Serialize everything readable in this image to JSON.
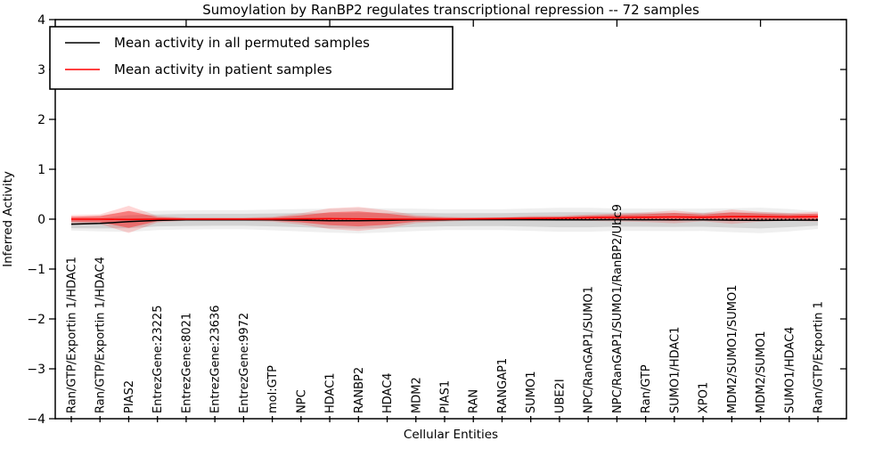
{
  "chart_data": {
    "type": "line",
    "title": "Sumoylation by RanBP2 regulates transcriptional repression -- 72 samples",
    "xlabel": "Cellular Entities",
    "ylabel": "Inferred Activity",
    "ylim": [
      -4,
      4
    ],
    "yticks": [
      -4,
      -3,
      -2,
      -1,
      0,
      1,
      2,
      3,
      4
    ],
    "top_xtick_indices": [
      4,
      9,
      14,
      19,
      24
    ],
    "grid": false,
    "legend_position": "upper left",
    "zero_line": {
      "y": 0,
      "style": "dotted",
      "color": "#000000"
    },
    "categories": [
      "Ran/GTP/Exportin 1/HDAC1",
      "Ran/GTP/Exportin 1/HDAC4",
      "PIAS2",
      "EntrezGene:23225",
      "EntrezGene:8021",
      "EntrezGene:23636",
      "EntrezGene:9972",
      "mol:GTP",
      "NPC",
      "HDAC1",
      "RANBP2",
      "HDAC4",
      "MDM2",
      "PIAS1",
      "RAN",
      "RANGAP1",
      "SUMO1",
      "UBE2I",
      "NPC/RanGAP1/SUMO1",
      "NPC/RanGAP1/SUMO1/RanBP2/Ubc9",
      "Ran/GTP",
      "SUMO1/HDAC1",
      "XPO1",
      "MDM2/SUMO1/SUMO1",
      "MDM2/SUMO1",
      "SUMO1/HDAC4",
      "Ran/GTP/Exportin 1"
    ],
    "series": [
      {
        "name": "Mean activity in all permuted samples",
        "color": "#000000",
        "band_color": "#808080",
        "values": [
          -0.1,
          -0.085,
          -0.05,
          -0.025,
          -0.015,
          -0.012,
          -0.012,
          -0.015,
          -0.02,
          -0.03,
          -0.03,
          -0.025,
          -0.015,
          -0.012,
          -0.01,
          -0.01,
          -0.01,
          -0.012,
          -0.012,
          -0.01,
          -0.012,
          -0.015,
          -0.012,
          -0.02,
          -0.025,
          -0.02,
          -0.02
        ],
        "band": [
          0.08,
          0.1,
          0.13,
          0.12,
          0.12,
          0.12,
          0.12,
          0.13,
          0.14,
          0.15,
          0.16,
          0.15,
          0.14,
          0.13,
          0.13,
          0.13,
          0.14,
          0.15,
          0.15,
          0.14,
          0.14,
          0.14,
          0.14,
          0.15,
          0.16,
          0.14,
          0.11
        ]
      },
      {
        "name": "Mean activity in patient samples",
        "color": "#ff0000",
        "band_color": "#ff0000",
        "values": [
          0.0,
          0.0,
          -0.005,
          0.0,
          0.0,
          0.0,
          0.0,
          0.0,
          0.005,
          0.01,
          0.005,
          0.0,
          0.0,
          0.0,
          0.005,
          0.01,
          0.015,
          0.02,
          0.03,
          0.035,
          0.04,
          0.045,
          0.04,
          0.05,
          0.05,
          0.045,
          0.05
        ],
        "band": [
          0.05,
          0.06,
          0.17,
          0.04,
          0.02,
          0.02,
          0.02,
          0.03,
          0.07,
          0.13,
          0.15,
          0.11,
          0.05,
          0.03,
          0.02,
          0.02,
          0.03,
          0.03,
          0.04,
          0.05,
          0.06,
          0.08,
          0.05,
          0.09,
          0.06,
          0.05,
          0.06
        ]
      }
    ],
    "band_outer_scale": 1.6
  }
}
